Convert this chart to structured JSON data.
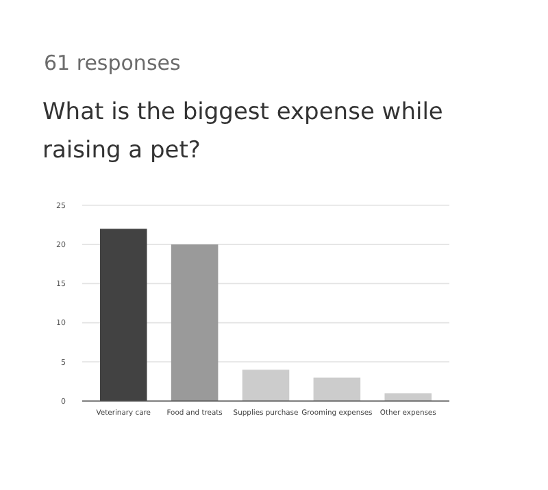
{
  "chart_data": {
    "type": "bar",
    "subtitle": "61 responses",
    "title": "What is the biggest expense while raising a pet?",
    "categories": [
      "Veterinary care",
      "Food and treats",
      "Supplies purchase",
      "Grooming expenses",
      "Other expenses"
    ],
    "values": [
      22,
      20,
      4,
      3,
      1
    ],
    "colors": [
      "#424242",
      "#9a9a9a",
      "#cccccc",
      "#cccccc",
      "#cccccc"
    ],
    "ylim": [
      0,
      25
    ],
    "yticks": [
      0,
      5,
      10,
      15,
      20,
      25
    ],
    "grid": "y"
  }
}
